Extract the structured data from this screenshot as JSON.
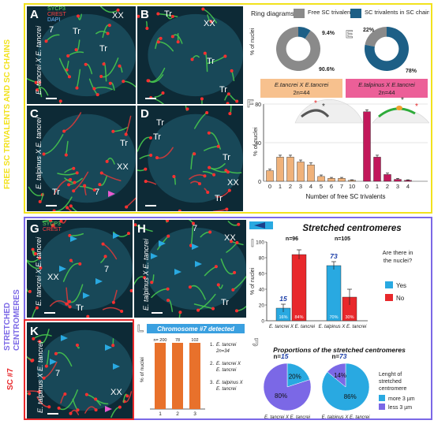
{
  "side_titles": {
    "top": "FREE SC TRIVALENTS AND SC CHAINS",
    "middle_line1": "STRETCHED",
    "middle_line2": "CENTROMERES",
    "bottom": "SC #7"
  },
  "channels": {
    "sycp3": "SYCP3",
    "crest": "CREST",
    "dapi": "DAPI"
  },
  "panels": {
    "A": {
      "letter": "A",
      "cross": "E. tancrei X E. tancrei",
      "labels": [
        "XX",
        "7",
        "Tr",
        "Tr"
      ]
    },
    "B": {
      "letter": "B",
      "labels": [
        "Tr",
        "XX",
        "Tr",
        "Tr"
      ]
    },
    "C": {
      "letter": "C",
      "cross": "E. talpinus X E. tancrei",
      "labels": [
        "Tr",
        "XX",
        "7",
        "Tr"
      ]
    },
    "D": {
      "letter": "D",
      "labels": [
        "Tr",
        "Tr",
        "Tr",
        "XX",
        "Tr"
      ]
    },
    "G": {
      "letter": "G",
      "cross": "E. tancrei X E. tancrei",
      "labels": [
        "XX",
        "7",
        "Tr"
      ]
    },
    "H": {
      "letter": "H",
      "cross": "E. talpinus X E. tancrei",
      "labels": [
        "7",
        "XX",
        "Tr"
      ]
    },
    "K": {
      "letter": "K",
      "cross": "E. talpinus X E. tancrei",
      "labels": [
        "7",
        "XX"
      ]
    }
  },
  "panel_E": {
    "letter": "E",
    "legend_title": "Ring diagrams:",
    "legend_free": "Free SC trivalents",
    "legend_chains": "SC  trivalents in SC chains",
    "ylabel": "% of nuclei",
    "colors": {
      "free": "#8a8a8a",
      "chain": "#1d5f86"
    },
    "rings": [
      {
        "chain_pct": 9.4,
        "free_pct": 90.6,
        "chain_label": "9.4%",
        "free_label": "90.6%"
      },
      {
        "chain_pct": 78,
        "free_pct": 22,
        "chain_label": "78%",
        "free_label": "22%"
      }
    ],
    "groups": [
      {
        "name": "E.tancrei X E.tancrei",
        "n": "2n=44",
        "color": "#f7c18e"
      },
      {
        "name": "E.talpinus X E.tancrei",
        "n": "2n=44",
        "color": "#ec5f98"
      }
    ]
  },
  "chart_data": [
    {
      "type": "bar",
      "panel": "F",
      "xlabel": "Number of free SC trivalents",
      "ylabel": "% of nuclei",
      "ylim": [
        0,
        80
      ],
      "yticks": [
        0,
        40,
        80
      ],
      "series": [
        {
          "name": "E.tancrei X E.tancrei",
          "color": "#f0b27a",
          "categories": [
            "0",
            "1",
            "2",
            "3",
            "4",
            "5",
            "6",
            "7",
            "10"
          ],
          "values": [
            11,
            25,
            25,
            20,
            17,
            5,
            3,
            3,
            1
          ],
          "errors": [
            1.5,
            2,
            2,
            2,
            2,
            1.5,
            1,
            1,
            0.5
          ]
        },
        {
          "name": "E.talpinus X E.tancrei",
          "color": "#c2185b",
          "categories": [
            "0",
            "1",
            "2",
            "3",
            "4"
          ],
          "values": [
            72,
            25,
            7,
            2,
            1
          ],
          "errors": [
            2,
            2,
            1.5,
            1,
            0.5
          ]
        }
      ]
    },
    {
      "type": "bar",
      "panel": "I",
      "title": "Stretched centromeres",
      "ylabel": "% of nuclei",
      "ylim": [
        0,
        100
      ],
      "yticks": [
        0,
        20,
        40,
        60,
        80,
        100
      ],
      "categories": [
        "E. tancrei X E. tancrei",
        "E. talpinus X E. tancrei"
      ],
      "n_labels": [
        "n=96",
        "n=105"
      ],
      "n_counts": [
        "15",
        "73"
      ],
      "series": [
        {
          "name": "Yes",
          "color": "#29a9e1",
          "values": [
            16,
            70
          ],
          "errors": [
            5,
            5
          ],
          "labels": [
            "16%",
            "70%"
          ]
        },
        {
          "name": "No",
          "color": "#e8282b",
          "values": [
            84,
            30
          ],
          "errors": [
            6,
            10
          ],
          "labels": [
            "84%",
            "30%"
          ]
        }
      ],
      "legend_title": "Are there in the nuclei?"
    },
    {
      "type": "pie",
      "panel": "J",
      "title": "Proportions of the stretched centromeres",
      "legend_title": "Lenght of stretched centromere",
      "series": [
        {
          "name": "more 3 µm",
          "color": "#29a9e1"
        },
        {
          "name": "less 3 µm",
          "color": "#7b68e6"
        }
      ],
      "pies": [
        {
          "n_prefix": "n=",
          "n": "15",
          "label": "E. tancrei X  E. tancrei",
          "values": [
            20,
            80
          ],
          "value_labels": [
            "20%",
            "80%"
          ]
        },
        {
          "n_prefix": "n=",
          "n": "73",
          "label": "E. talpinus X  E. tancrei",
          "values": [
            86,
            14
          ],
          "value_labels": [
            "86%",
            "14%"
          ]
        }
      ]
    },
    {
      "type": "bar",
      "panel": "L",
      "title": "Chromosome #7 detected",
      "ylabel": "% of nuclei",
      "ylim": [
        0,
        100
      ],
      "categories": [
        "1",
        "2",
        "3"
      ],
      "values": [
        100,
        100,
        100
      ],
      "n_labels": [
        "n= 200",
        "78",
        "102"
      ],
      "color": "#e8712b",
      "legend": [
        {
          "num": "1.",
          "name": "E. tancrei",
          "n": "2n=34"
        },
        {
          "num": "2.",
          "name": "E. tancrei X",
          "n": "E. tancrei"
        },
        {
          "num": "3.",
          "name": "E. talpinus X",
          "n": "E. tancrei"
        }
      ]
    }
  ]
}
